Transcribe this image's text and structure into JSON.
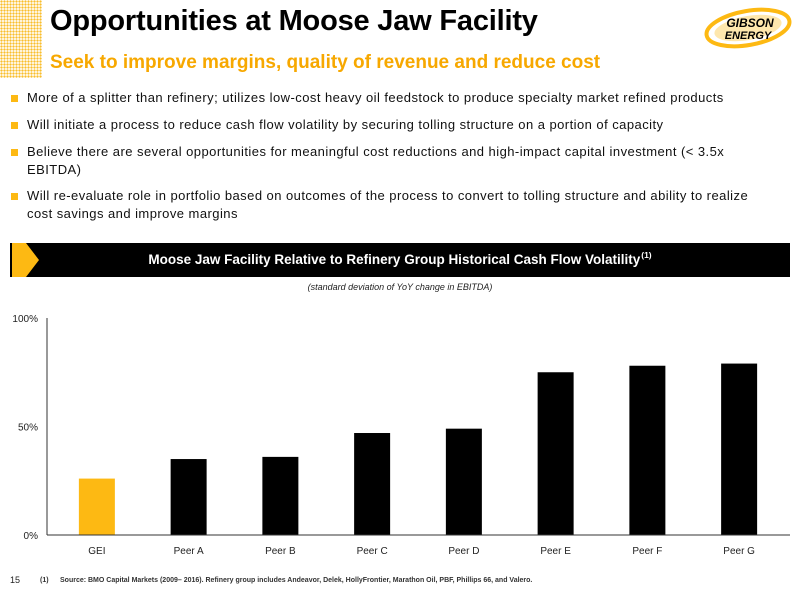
{
  "header": {
    "title": "Opportunities at Moose Jaw Facility",
    "subtitle": "Seek to improve margins, quality of revenue and reduce cost"
  },
  "logo": {
    "line1": "GIBSON",
    "line2": "ENERGY"
  },
  "bullets": [
    {
      "lines": [
        "More of a splitter than refinery; utilizes low-cost heavy oil feedstock to produce specialty market refined products"
      ]
    },
    {
      "lines": [
        "Will initiate a process to reduce cash flow volatility by securing tolling structure on a portion of capacity"
      ]
    },
    {
      "lines": [
        "Believe there are several opportunities for meaningful cost reductions and high-impact capital investment (< 3.5x",
        "EBITDA)"
      ]
    },
    {
      "lines": [
        "Will re-evaluate role in portfolio based on outcomes of the process to convert to tolling structure and ability to realize",
        "cost savings and improve margins"
      ]
    }
  ],
  "chart_data": {
    "type": "bar",
    "title": "Moose Jaw Facility Relative to Refinery Group Historical Cash Flow Volatility",
    "title_note": "(1)",
    "subtitle": "(standard deviation of YoY change in EBITDA)",
    "categories": [
      "GEI",
      "Peer A",
      "Peer B",
      "Peer C",
      "Peer D",
      "Peer E",
      "Peer F",
      "Peer G"
    ],
    "values": [
      26,
      35,
      36,
      47,
      49,
      75,
      78,
      79
    ],
    "colors": [
      "#FDB913",
      "#000000",
      "#000000",
      "#000000",
      "#000000",
      "#000000",
      "#000000",
      "#000000"
    ],
    "ylim": [
      0,
      100
    ],
    "y_ticks": [
      {
        "value": 100,
        "label": "100%"
      },
      {
        "value": 50,
        "label": "50%"
      },
      {
        "value": 0,
        "label": "0%"
      }
    ],
    "xlabel": "",
    "ylabel": "",
    "grid": false,
    "legend": "none"
  },
  "footer": {
    "page_number": "15",
    "note_marker": "(1)",
    "note_text": "Source: BMO Capital Markets (2009– 2016). Refinery group includes Andeavor, Delek, HollyFrontier, Marathon Oil, PBF, Phillips 66, and Valero."
  },
  "colors": {
    "accent": "#F7A800",
    "highlight": "#FDB913",
    "bar": "#000000",
    "banner": "#000000"
  },
  "icons": {
    "bullet": "bullet-square-icon",
    "banner": "banner-chevron-icon",
    "corner": "corner-pattern"
  }
}
